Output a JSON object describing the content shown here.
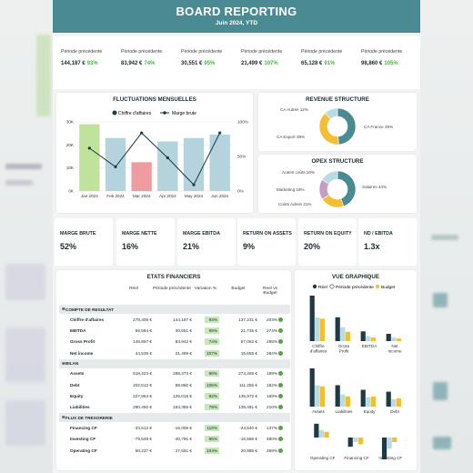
{
  "header": {
    "title": "BOARD REPORTING",
    "subtitle": "Juin 2024, YTD"
  },
  "kpis": [
    {
      "label": "Période précédente",
      "value": "144,187 €",
      "pct": "93%"
    },
    {
      "label": "Période précédente",
      "value": "83,942 €",
      "pct": "74%"
    },
    {
      "label": "Période précédente",
      "value": "30,551 €",
      "pct": "95%"
    },
    {
      "label": "Période précédente",
      "value": "21,499 €",
      "pct": "107%"
    },
    {
      "label": "Période précédente",
      "value": "65,128 €",
      "pct": "91%"
    },
    {
      "label": "Période précédente",
      "value": "98,860 €",
      "pct": "105%"
    }
  ],
  "fluct": {
    "title": "FLUCTUATIONS MENSUELLES",
    "legend_bars": "Chiffre d'affaires",
    "legend_line": "Marge brute",
    "colors": {
      "bar": "#b5d3dc",
      "bar_hi": "#c0e39b",
      "bar_low": "#ef9ca0",
      "line": "#1e3a46"
    }
  },
  "revenue": {
    "title": "REVENUE STRUCTURE",
    "slices": [
      {
        "label": "CA France 49%",
        "value": 49,
        "color": "#4a8a92"
      },
      {
        "label": "CA Export 39%",
        "value": 39,
        "color": "#f4be32"
      },
      {
        "label": "CA Autres 12%",
        "value": 12,
        "color": "#b9dce2"
      }
    ]
  },
  "opex": {
    "title": "OPEX STRUCTURE",
    "slices": [
      {
        "label": "Salaires 44%",
        "value": 44,
        "color": "#4a8a92"
      },
      {
        "label": "Coûts Admin 21%",
        "value": 21,
        "color": "#f4be32"
      },
      {
        "label": "Marketing 18%",
        "value": 18,
        "color": "#c39dc6"
      },
      {
        "label": "Autres coûts 16%",
        "value": 16,
        "color": "#b9dce2"
      }
    ]
  },
  "ratios": [
    {
      "label": "MARGE BRUTE",
      "value": "52%"
    },
    {
      "label": "MARGE NETTE",
      "value": "16%"
    },
    {
      "label": "MARGE EBITDA",
      "value": "21%"
    },
    {
      "label": "RETURN ON ASSETS",
      "value": "9%"
    },
    {
      "label": "RETURN ON EQUITY",
      "value": "20%"
    },
    {
      "label": "ND / EBITDA",
      "value": "1.3x"
    }
  ],
  "etats": {
    "title": "ETATS FINANCIERS",
    "headers": [
      "Réel",
      "Période précédente",
      "Variation %",
      "Budget",
      "Reel vs Budget"
    ],
    "sections": [
      {
        "name": "COMPTE DE RESULTAT",
        "rows": [
          [
            "Chiffre d'affaires",
            "278,405 €",
            "144,187 €",
            "93%",
            "137,231 €",
            "203%"
          ],
          [
            "EBITDA",
            "59,584 €",
            "30,551 €",
            "95%",
            "21,735 €",
            "274%"
          ],
          [
            "Gross Profit",
            "145,857 €",
            "83,942 €",
            "74%",
            "57,062 €",
            "255%"
          ],
          [
            "Net income",
            "44,535 €",
            "21,499 €",
            "107%",
            "15,655 €",
            "284%"
          ]
        ]
      },
      {
        "name": "BILAN",
        "rows": [
          [
            "Assets",
            "518,423 €",
            "288,373 €",
            "80%",
            "274,465 €",
            "189%"
          ],
          [
            "Debt",
            "202,512 €",
            "98,860 €",
            "105%",
            "111,255 €",
            "182%"
          ],
          [
            "Equity",
            "227,963 €",
            "125,018 €",
            "82%",
            "135,972 €",
            "168%"
          ],
          [
            "Liabilities",
            "290,460 €",
            "163,355 €",
            "78%",
            "138,491 €",
            "210%"
          ]
        ]
      },
      {
        "name": "FLUX DE TRESORERIE",
        "rows": [
          [
            "Financing CF",
            "-33,612 €",
            "-16,005 €",
            "110%",
            "-24,540 €",
            "137%"
          ],
          [
            "Investing CF",
            "-79,549 €",
            "-40,791 €",
            "95%",
            "-16,586 €",
            "480%"
          ],
          [
            "Operating CF",
            "50,227 €",
            "27,551 €",
            "104%",
            "20,885 €",
            "269%"
          ]
        ]
      }
    ]
  },
  "vue": {
    "title": "VUE GRAPHIQUE",
    "legend": [
      "Réel",
      "Période précédente",
      "Budget"
    ],
    "colors": [
      "#1e3a46",
      "#b9dce2",
      "#f4be32"
    ]
  },
  "chart_data": [
    {
      "type": "bar",
      "title": "FLUCTUATIONS MENSUELLES",
      "categories": [
        "Jan 2024",
        "Feb 2024",
        "Mar 2024",
        "Apr 2024",
        "May 2024",
        "Jun 2024"
      ],
      "series": [
        {
          "name": "Chiffre d'affaires",
          "values": [
            29000,
            23000,
            12500,
            21500,
            23000,
            24500
          ]
        },
        {
          "name": "Marge brute",
          "values": [
            62,
            35,
            84,
            48,
            9,
            84
          ],
          "type": "line",
          "axis": "right"
        }
      ],
      "yticks_left": [
        "0K",
        "10K",
        "20K",
        "30K"
      ],
      "yticks_right": [
        "0%",
        "50%",
        "100%"
      ],
      "ylim": [
        0,
        30000
      ],
      "ylim_right": [
        0,
        100
      ]
    },
    {
      "type": "bar",
      "title": "VUE GRAPHIQUE",
      "groups": [
        {
          "categories": [
            "Chiffre d'affaires",
            "Gross Profit",
            "EBITDA",
            "Net Income"
          ],
          "series": [
            {
              "name": "Réel",
              "values": [
                278405,
                145857,
                59584,
                44535
              ]
            },
            {
              "name": "Période précédente",
              "values": [
                144187,
                83942,
                30551,
                21499
              ]
            },
            {
              "name": "Budget",
              "values": [
                137231,
                57062,
                21735,
                15655
              ]
            }
          ]
        },
        {
          "categories": [
            "Assets",
            "Liabilities",
            "Equity",
            "Debt"
          ],
          "series": [
            {
              "name": "Réel",
              "values": [
                518423,
                290460,
                227963,
                202512
              ]
            },
            {
              "name": "Période précédente",
              "values": [
                288373,
                163355,
                125018,
                98860
              ]
            },
            {
              "name": "Budget",
              "values": [
                274465,
                138491,
                135972,
                111255
              ]
            }
          ]
        },
        {
          "categories": [
            "Operating CF",
            "Financing CF",
            "Investing CF"
          ],
          "series": [
            {
              "name": "Réel",
              "values": [
                50227,
                -33612,
                -79549
              ]
            },
            {
              "name": "Période précédente",
              "values": [
                27551,
                -16005,
                -40791
              ]
            },
            {
              "name": "Budget",
              "values": [
                20885,
                -24540,
                -16586
              ]
            }
          ]
        }
      ]
    }
  ]
}
